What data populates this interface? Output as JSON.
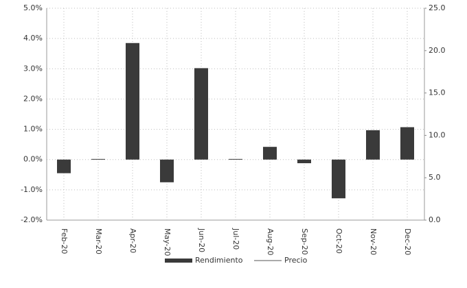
{
  "chart_data": {
    "type": "bar",
    "categories": [
      "Feb-20",
      "Mar-20",
      "Apr-20",
      "May-20",
      "Jun-20",
      "Jul-20",
      "Aug-20",
      "Sep-20",
      "Oct-20",
      "Nov-20",
      "Dec-20"
    ],
    "series": [
      {
        "name": "Rendimiento",
        "color": "#3a3a3a",
        "values": [
          -0.45,
          0.02,
          3.85,
          -0.75,
          3.02,
          0.02,
          0.42,
          -0.12,
          -1.28,
          0.97,
          1.07
        ]
      },
      {
        "name": "Precio",
        "color": "#555555",
        "axis": "y2",
        "values": [
          null,
          null,
          null,
          null,
          null,
          null,
          null,
          null,
          null,
          null,
          null
        ]
      }
    ],
    "ylim": [
      -2,
      5
    ],
    "yticks": [
      {
        "value": -2,
        "label": "-2.0%"
      },
      {
        "value": -1,
        "label": "-1.0%"
      },
      {
        "value": 0,
        "label": "0.0%"
      },
      {
        "value": 1,
        "label": "1.0%"
      },
      {
        "value": 2,
        "label": "2.0%"
      },
      {
        "value": 3,
        "label": "3.0%"
      },
      {
        "value": 4,
        "label": "4.0%"
      },
      {
        "value": 5,
        "label": "5.0%"
      }
    ],
    "y2lim": [
      0,
      25
    ],
    "y2ticks": [
      {
        "value": 0,
        "label": "0.0"
      },
      {
        "value": 5,
        "label": "5.0"
      },
      {
        "value": 10,
        "label": "10.0"
      },
      {
        "value": 15,
        "label": "15.0"
      },
      {
        "value": 20,
        "label": "20.0"
      },
      {
        "value": 25,
        "label": "25.0"
      }
    ],
    "grid": true
  }
}
